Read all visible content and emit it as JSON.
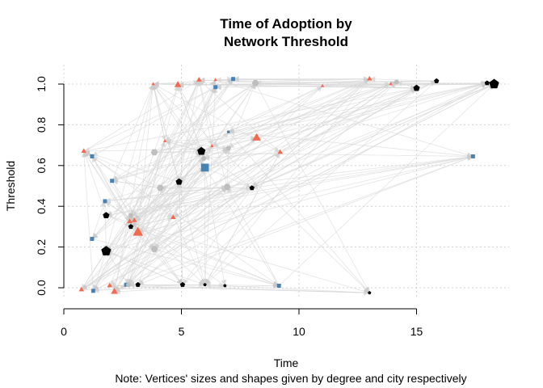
{
  "chart_data": {
    "type": "scatter",
    "title_line1": "Time of Adoption by",
    "title_line2": "Network Threshold",
    "xlabel": "Time",
    "ylabel": "Threshold",
    "note": "Note: Vertices' sizes and shapes given by degree and city respectively",
    "xlim": [
      0,
      18.5
    ],
    "ylim": [
      0,
      1
    ],
    "x_ticks": [
      "0",
      "5",
      "10",
      "15"
    ],
    "y_ticks": [
      "0.0",
      "0.2",
      "0.4",
      "0.6",
      "0.8",
      "1.0"
    ],
    "grid": true,
    "colors": {
      "city_1": "#000000",
      "city_2": "#f46a4e",
      "city_3": "#4682b4",
      "city_4": "#bebebe",
      "edges": "#d9d9d9",
      "grid": "#d3d3d3"
    },
    "points": [
      {
        "x": 1.8,
        "y": 0.18,
        "city": 1,
        "deg": 5
      },
      {
        "x": 5.85,
        "y": 0.67,
        "city": 1,
        "deg": 4
      },
      {
        "x": 4.9,
        "y": 0.52,
        "city": 1,
        "deg": 3
      },
      {
        "x": 1.8,
        "y": 0.355,
        "city": 1,
        "deg": 3
      },
      {
        "x": 8.0,
        "y": 0.49,
        "city": 1,
        "deg": 2
      },
      {
        "x": 15.0,
        "y": 0.98,
        "city": 1,
        "deg": 3
      },
      {
        "x": 15.85,
        "y": 1.015,
        "city": 1,
        "deg": 2
      },
      {
        "x": 18.3,
        "y": 1.0,
        "city": 1,
        "deg": 5
      },
      {
        "x": 18.0,
        "y": 1.005,
        "city": 1,
        "deg": 2
      },
      {
        "x": 5.05,
        "y": 0.015,
        "city": 1,
        "deg": 2
      },
      {
        "x": 6.85,
        "y": 0.01,
        "city": 1,
        "deg": 1
      },
      {
        "x": 3.15,
        "y": 0.015,
        "city": 1,
        "deg": 2
      },
      {
        "x": 2.85,
        "y": 0.3,
        "city": 1,
        "deg": 2
      },
      {
        "x": 6.0,
        "y": 0.015,
        "city": 1,
        "deg": 1
      },
      {
        "x": 13.0,
        "y": -0.025,
        "city": 1,
        "deg": 1
      },
      {
        "x": 3.15,
        "y": 0.27,
        "city": 2,
        "deg": 5
      },
      {
        "x": 8.2,
        "y": 0.735,
        "city": 2,
        "deg": 4
      },
      {
        "x": 2.15,
        "y": -0.02,
        "city": 2,
        "deg": 3
      },
      {
        "x": 4.85,
        "y": 0.995,
        "city": 2,
        "deg": 3
      },
      {
        "x": 0.85,
        "y": 0.67,
        "city": 2,
        "deg": 2
      },
      {
        "x": 2.8,
        "y": 0.325,
        "city": 2,
        "deg": 2
      },
      {
        "x": 3.0,
        "y": 0.33,
        "city": 2,
        "deg": 2
      },
      {
        "x": 4.65,
        "y": 0.345,
        "city": 2,
        "deg": 2
      },
      {
        "x": 5.75,
        "y": 1.02,
        "city": 2,
        "deg": 2
      },
      {
        "x": 13.0,
        "y": 1.025,
        "city": 2,
        "deg": 2
      },
      {
        "x": 0.75,
        "y": -0.01,
        "city": 2,
        "deg": 2
      },
      {
        "x": 1.95,
        "y": 0.01,
        "city": 2,
        "deg": 2
      },
      {
        "x": 3.8,
        "y": 1.0,
        "city": 2,
        "deg": 1
      },
      {
        "x": 6.45,
        "y": 1.02,
        "city": 2,
        "deg": 1
      },
      {
        "x": 9.2,
        "y": 0.665,
        "city": 2,
        "deg": 2
      },
      {
        "x": 6.3,
        "y": 0.695,
        "city": 2,
        "deg": 1
      },
      {
        "x": 4.3,
        "y": 0.72,
        "city": 2,
        "deg": 1
      },
      {
        "x": 11.0,
        "y": 0.99,
        "city": 2,
        "deg": 1
      },
      {
        "x": 13.9,
        "y": 1.0,
        "city": 2,
        "deg": 1
      },
      {
        "x": 6.0,
        "y": 0.59,
        "city": 3,
        "deg": 5
      },
      {
        "x": 1.2,
        "y": 0.645,
        "city": 3,
        "deg": 2
      },
      {
        "x": 1.75,
        "y": 0.425,
        "city": 3,
        "deg": 2
      },
      {
        "x": 2.05,
        "y": 0.525,
        "city": 3,
        "deg": 2
      },
      {
        "x": 1.2,
        "y": 0.24,
        "city": 3,
        "deg": 2
      },
      {
        "x": 7.2,
        "y": 1.025,
        "city": 3,
        "deg": 2
      },
      {
        "x": 6.45,
        "y": 0.985,
        "city": 3,
        "deg": 2
      },
      {
        "x": 9.15,
        "y": 0.01,
        "city": 3,
        "deg": 2
      },
      {
        "x": 17.4,
        "y": 0.645,
        "city": 3,
        "deg": 2
      },
      {
        "x": 7.0,
        "y": 0.765,
        "city": 3,
        "deg": 1
      },
      {
        "x": 1.25,
        "y": -0.015,
        "city": 3,
        "deg": 2
      },
      {
        "x": 2.65,
        "y": 0.015,
        "city": 3,
        "deg": 2
      },
      {
        "x": 3.85,
        "y": 0.19,
        "city": 4,
        "deg": 3
      },
      {
        "x": 3.85,
        "y": 0.665,
        "city": 4,
        "deg": 3
      },
      {
        "x": 6.95,
        "y": 0.495,
        "city": 4,
        "deg": 3
      },
      {
        "x": 4.1,
        "y": 0.49,
        "city": 4,
        "deg": 3
      },
      {
        "x": 8.15,
        "y": 1.005,
        "city": 4,
        "deg": 3
      },
      {
        "x": 2.85,
        "y": 0.355,
        "city": 4,
        "deg": 2
      },
      {
        "x": 5.95,
        "y": 0.635,
        "city": 4,
        "deg": 2
      },
      {
        "x": 2.75,
        "y": 0.015,
        "city": 4,
        "deg": 2
      },
      {
        "x": 7.0,
        "y": 0.685,
        "city": 4,
        "deg": 2
      },
      {
        "x": 14.15,
        "y": 1.01,
        "city": 4,
        "deg": 2
      }
    ]
  }
}
